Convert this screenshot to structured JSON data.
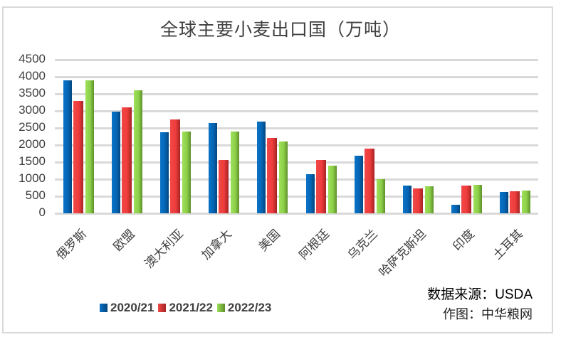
{
  "chart_data": {
    "type": "bar",
    "title": "全球主要小麦出口国（万吨）",
    "xlabel": "",
    "ylabel": "",
    "ylim": [
      0,
      4500
    ],
    "yticks": [
      0,
      500,
      1000,
      1500,
      2000,
      2500,
      3000,
      3500,
      4000,
      4500
    ],
    "grid": true,
    "legend_position": "bottom-left",
    "categories": [
      "俄罗斯",
      "欧盟",
      "澳大利亚",
      "加拿大",
      "美国",
      "阿根廷",
      "乌克兰",
      "哈萨克斯坦",
      "印度",
      "土耳其"
    ],
    "series": [
      {
        "name": "2020/21",
        "color": "#0565b4",
        "values": [
          3900,
          2970,
          2370,
          2640,
          2680,
          1150,
          1680,
          820,
          250,
          630
        ]
      },
      {
        "name": "2021/22",
        "color": "#ee3c3c",
        "values": [
          3300,
          3100,
          2750,
          1570,
          2200,
          1570,
          1900,
          720,
          820,
          650
        ]
      },
      {
        "name": "2022/23",
        "color": "#8ccf48",
        "values": [
          3900,
          3600,
          2400,
          2400,
          2100,
          1400,
          1000,
          800,
          840,
          670
        ]
      }
    ],
    "annotations": [
      "数据来源：USDA",
      "作图：中华粮网"
    ]
  },
  "title": "全球主要小麦出口国（万吨）",
  "yticks": [
    "4500",
    "4000",
    "3500",
    "3000",
    "2500",
    "2000",
    "1500",
    "1000",
    "500",
    "0"
  ],
  "categories": [
    "俄罗斯",
    "欧盟",
    "澳大利亚",
    "加拿大",
    "美国",
    "阿根廷",
    "乌克兰",
    "哈萨克斯坦",
    "印度",
    "土耳其"
  ],
  "legend": [
    "2020/21",
    "2021/22",
    "2022/23"
  ],
  "source": "数据来源：USDA",
  "credit": "作图：中华粮网"
}
